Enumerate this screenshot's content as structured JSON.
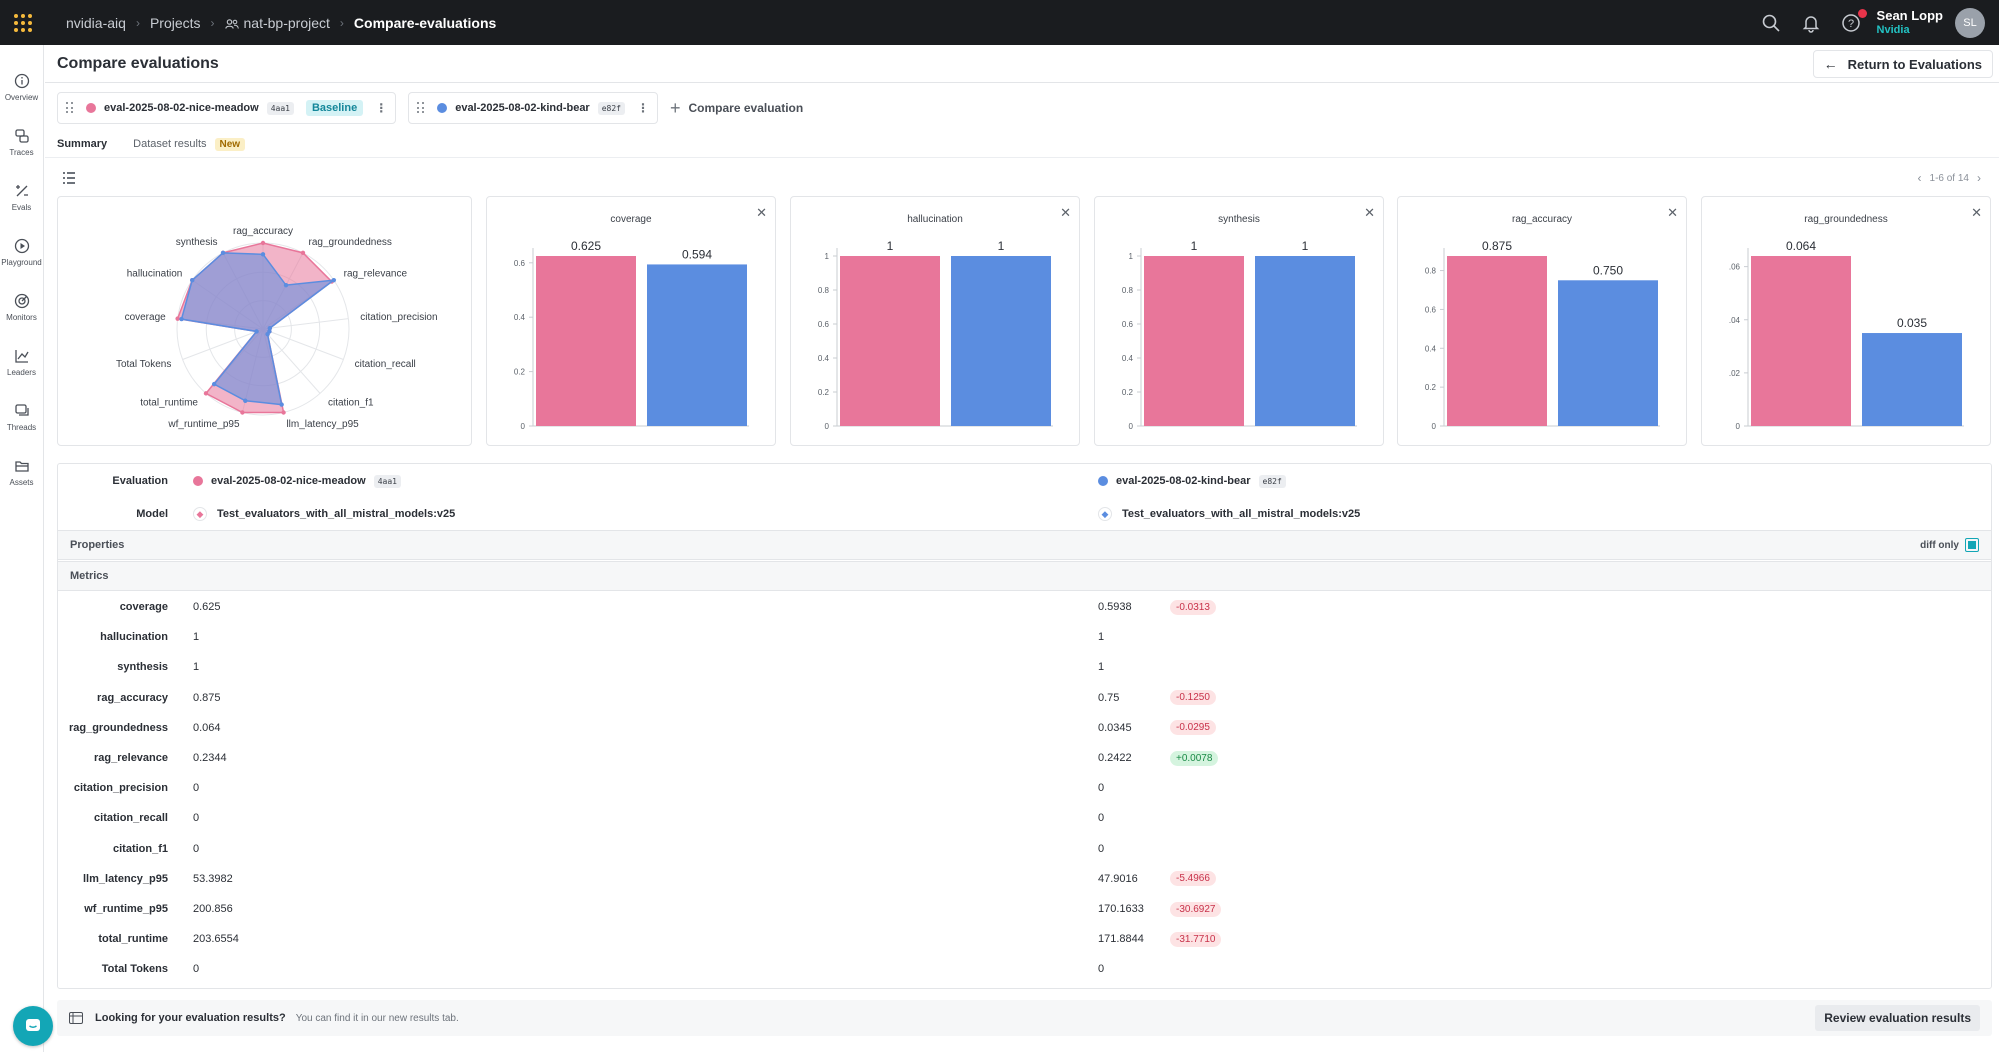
{
  "topbar": {
    "breadcrumbs": [
      "nvidia-aiq",
      "Projects",
      "nat-bp-project",
      "Compare-evaluations"
    ],
    "user_name": "Sean Lopp",
    "user_org": "Nvidia",
    "avatar_initials": "SL"
  },
  "sidebar": {
    "items": [
      {
        "label": "Overview",
        "icon": "info-icon"
      },
      {
        "label": "Traces",
        "icon": "layers-icon"
      },
      {
        "label": "Evals",
        "icon": "evals-icon"
      },
      {
        "label": "Playground",
        "icon": "play-icon"
      },
      {
        "label": "Monitors",
        "icon": "radar-icon"
      },
      {
        "label": "Leaders",
        "icon": "chart-icon"
      },
      {
        "label": "Threads",
        "icon": "threads-icon"
      },
      {
        "label": "Assets",
        "icon": "folder-icon"
      }
    ]
  },
  "page": {
    "title": "Compare evaluations",
    "return_label": "Return to Evaluations",
    "compare_label": "Compare evaluation"
  },
  "evaluations": [
    {
      "name": "eval-2025-08-02-nice-meadow",
      "hash": "4aa1",
      "color": "#e8769a",
      "badge": "Baseline",
      "model": "Test_evaluators_with_all_mistral_models:v25"
    },
    {
      "name": "eval-2025-08-02-kind-bear",
      "hash": "e82f",
      "color": "#5b8de0",
      "model": "Test_evaluators_with_all_mistral_models:v25"
    }
  ],
  "tabs": [
    {
      "label": "Summary",
      "active": true
    },
    {
      "label": "Dataset results",
      "badge": "New"
    }
  ],
  "pager": {
    "text": "1-6 of 14"
  },
  "colors": {
    "baseline": "#e8769a",
    "compare": "#5b8de0",
    "accent": "#13a6b6"
  },
  "radar": {
    "axes": [
      "coverage",
      "hallucination",
      "synthesis",
      "rag_accuracy",
      "rag_groundedness",
      "rag_relevance",
      "citation_precision",
      "citation_recall",
      "citation_f1",
      "llm_latency_p95",
      "wf_runtime_p95",
      "total_runtime",
      "Total Tokens"
    ],
    "series_a": [
      0.625,
      1,
      1,
      0.875,
      0.064,
      0.2344,
      0,
      0,
      0,
      53.3982,
      200.856,
      203.6554,
      0
    ],
    "series_b": [
      0.594,
      1,
      1,
      0.75,
      0.0345,
      0.2422,
      0,
      0,
      0,
      47.9016,
      170.1633,
      171.8844,
      0
    ]
  },
  "chart_data": [
    {
      "type": "bar",
      "title": "coverage",
      "categories": [
        "eval-2025-08-02-nice-meadow",
        "eval-2025-08-02-kind-bear"
      ],
      "values": [
        0.625,
        0.594
      ],
      "value_labels": [
        "0.625",
        "0.594"
      ],
      "yticks": [
        "0",
        "0.2",
        "0.4",
        "0.6"
      ],
      "ylim": [
        0,
        0.625
      ]
    },
    {
      "type": "bar",
      "title": "hallucination",
      "categories": [
        "eval-2025-08-02-nice-meadow",
        "eval-2025-08-02-kind-bear"
      ],
      "values": [
        1,
        1
      ],
      "value_labels": [
        "1",
        "1"
      ],
      "yticks": [
        "0",
        "0.2",
        "0.4",
        "0.6",
        "0.8",
        "1"
      ],
      "ylim": [
        0,
        1
      ]
    },
    {
      "type": "bar",
      "title": "synthesis",
      "categories": [
        "eval-2025-08-02-nice-meadow",
        "eval-2025-08-02-kind-bear"
      ],
      "values": [
        1,
        1
      ],
      "value_labels": [
        "1",
        "1"
      ],
      "yticks": [
        "0",
        "0.2",
        "0.4",
        "0.6",
        "0.8",
        "1"
      ],
      "ylim": [
        0,
        1
      ]
    },
    {
      "type": "bar",
      "title": "rag_accuracy",
      "categories": [
        "eval-2025-08-02-nice-meadow",
        "eval-2025-08-02-kind-bear"
      ],
      "values": [
        0.875,
        0.75
      ],
      "value_labels": [
        "0.875",
        "0.750"
      ],
      "yticks": [
        "0",
        "0.2",
        "0.4",
        "0.6",
        "0.8"
      ],
      "ylim": [
        0,
        0.875
      ]
    },
    {
      "type": "bar",
      "title": "rag_groundedness",
      "categories": [
        "eval-2025-08-02-nice-meadow",
        "eval-2025-08-02-kind-bear"
      ],
      "values": [
        0.064,
        0.035
      ],
      "value_labels": [
        "0.064",
        "0.035"
      ],
      "yticks": [
        "0",
        ".02",
        ".04",
        ".06"
      ],
      "ylim": [
        0,
        0.064
      ]
    }
  ],
  "table": {
    "row_labels": {
      "evaluation": "Evaluation",
      "model": "Model"
    },
    "properties_label": "Properties",
    "diff_only_label": "diff only",
    "metrics_label": "Metrics",
    "metrics": [
      {
        "name": "coverage",
        "a": "0.625",
        "b": "0.5938",
        "delta": "-0.0313",
        "sign": "neg"
      },
      {
        "name": "hallucination",
        "a": "1",
        "b": "1",
        "delta": "",
        "sign": ""
      },
      {
        "name": "synthesis",
        "a": "1",
        "b": "1",
        "delta": "",
        "sign": ""
      },
      {
        "name": "rag_accuracy",
        "a": "0.875",
        "b": "0.75",
        "delta": "-0.1250",
        "sign": "neg"
      },
      {
        "name": "rag_groundedness",
        "a": "0.064",
        "b": "0.0345",
        "delta": "-0.0295",
        "sign": "neg"
      },
      {
        "name": "rag_relevance",
        "a": "0.2344",
        "b": "0.2422",
        "delta": "+0.0078",
        "sign": "pos"
      },
      {
        "name": "citation_precision",
        "a": "0",
        "b": "0",
        "delta": "",
        "sign": ""
      },
      {
        "name": "citation_recall",
        "a": "0",
        "b": "0",
        "delta": "",
        "sign": ""
      },
      {
        "name": "citation_f1",
        "a": "0",
        "b": "0",
        "delta": "",
        "sign": ""
      },
      {
        "name": "llm_latency_p95",
        "a": "53.3982",
        "b": "47.9016",
        "delta": "-5.4966",
        "sign": "neg"
      },
      {
        "name": "wf_runtime_p95",
        "a": "200.856",
        "b": "170.1633",
        "delta": "-30.6927",
        "sign": "neg"
      },
      {
        "name": "total_runtime",
        "a": "203.6554",
        "b": "171.8844",
        "delta": "-31.7710",
        "sign": "neg"
      },
      {
        "name": "Total Tokens",
        "a": "0",
        "b": "0",
        "delta": "",
        "sign": ""
      }
    ]
  },
  "footer": {
    "title": "Looking for your evaluation results?",
    "subtitle": "You can find it in our new results tab.",
    "button": "Review evaluation results"
  }
}
